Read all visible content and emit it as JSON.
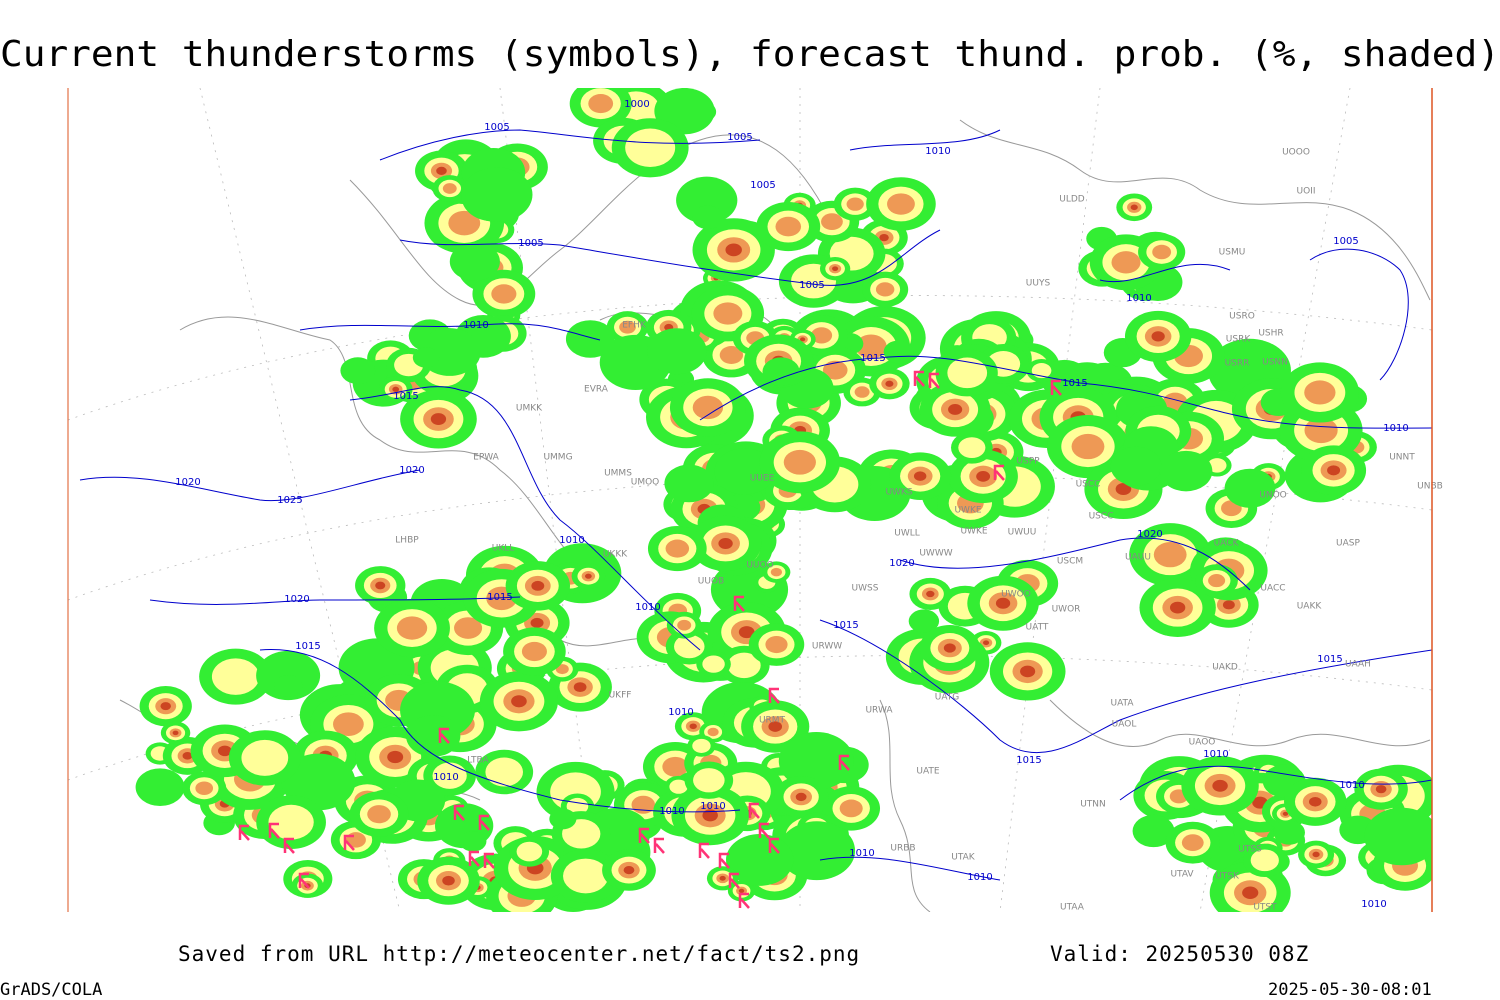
{
  "header": {
    "title": "Current thunderstorms (symbols), forecast thund. prob. (%, shaded)"
  },
  "map": {
    "isobar_labels": [
      "1000",
      "1005",
      "1005",
      "1005",
      "1005",
      "1005",
      "1005",
      "1010",
      "1010",
      "1010",
      "1010",
      "1010",
      "1010",
      "1010",
      "1010",
      "1010",
      "1010",
      "1010",
      "1010",
      "1010",
      "1010",
      "1010",
      "1015",
      "1015",
      "1015",
      "1015",
      "1015",
      "1015",
      "1015",
      "1015",
      "1020",
      "1020",
      "1020",
      "1020",
      "1020",
      "1025"
    ],
    "station_labels": [
      "UOOO",
      "UOII",
      "ULDD",
      "USMU",
      "UUYS",
      "USRO",
      "USRK",
      "USHR",
      "USRR",
      "USNN",
      "EFHK",
      "EVRA",
      "UMKK",
      "EPWA",
      "UMMG",
      "UMMS",
      "UMOO",
      "UUEE",
      "USPP",
      "USCC",
      "USCC",
      "UWKS",
      "UNOO",
      "UNBB",
      "UNNT",
      "UWKE",
      "UWKE",
      "UWUU",
      "UWLL",
      "UWWW",
      "UASP",
      "UACK",
      "USCM",
      "UAUU",
      "UUOO",
      "UUOB",
      "UWSS",
      "UACC",
      "UWOO",
      "UWOR",
      "UAKK",
      "UATT",
      "URWW",
      "UAKD",
      "UAAH",
      "UATG",
      "URWA",
      "UATA",
      "UAOL",
      "UAOO",
      "UATE",
      "UTNN",
      "URBB",
      "UTAK",
      "UTSS",
      "UTSK",
      "UTAV",
      "UTAA",
      "UTST",
      "LTBA",
      "LHBP",
      "UKLL",
      "UKKK",
      "UKFF",
      "URMT"
    ]
  },
  "footer": {
    "source": "Saved from URL http://meteocenter.net/fact/ts2.png",
    "valid": "Valid: 20250530 08Z",
    "software": "GrADS/COLA",
    "timestamp": "2025-05-30-08:01"
  }
}
